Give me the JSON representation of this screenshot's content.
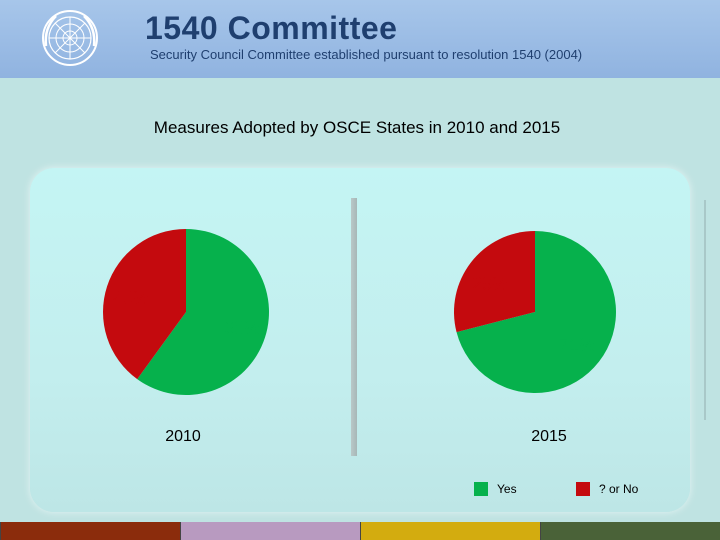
{
  "header": {
    "title": "1540 Committee",
    "subtitle": "Security Council Committee established pursuant to resolution 1540 (2004)",
    "emblem_icon": "un-emblem-icon",
    "background_color": "#a7c6ea"
  },
  "footer": {
    "colors": [
      "#8b2c0c",
      "#b89ac0",
      "#d3ac0f",
      "#4a6238"
    ]
  },
  "chart_data": {
    "type": "pie",
    "title": "Measures Adopted by OSCE States in 2010 and 2015",
    "categories": [
      "Yes",
      "? or No"
    ],
    "colors": [
      "#06b14c",
      "#c40a0e"
    ],
    "legend": {
      "placement": "bottom-right",
      "entries": [
        "Yes",
        "? or No"
      ]
    },
    "pies": [
      {
        "label": "2010",
        "values": [
          60,
          40
        ],
        "value_labels": [
          "60%",
          "40%"
        ]
      },
      {
        "label": "2015",
        "values": [
          71,
          29
        ],
        "value_labels": [
          "71%",
          "29%"
        ]
      }
    ]
  }
}
